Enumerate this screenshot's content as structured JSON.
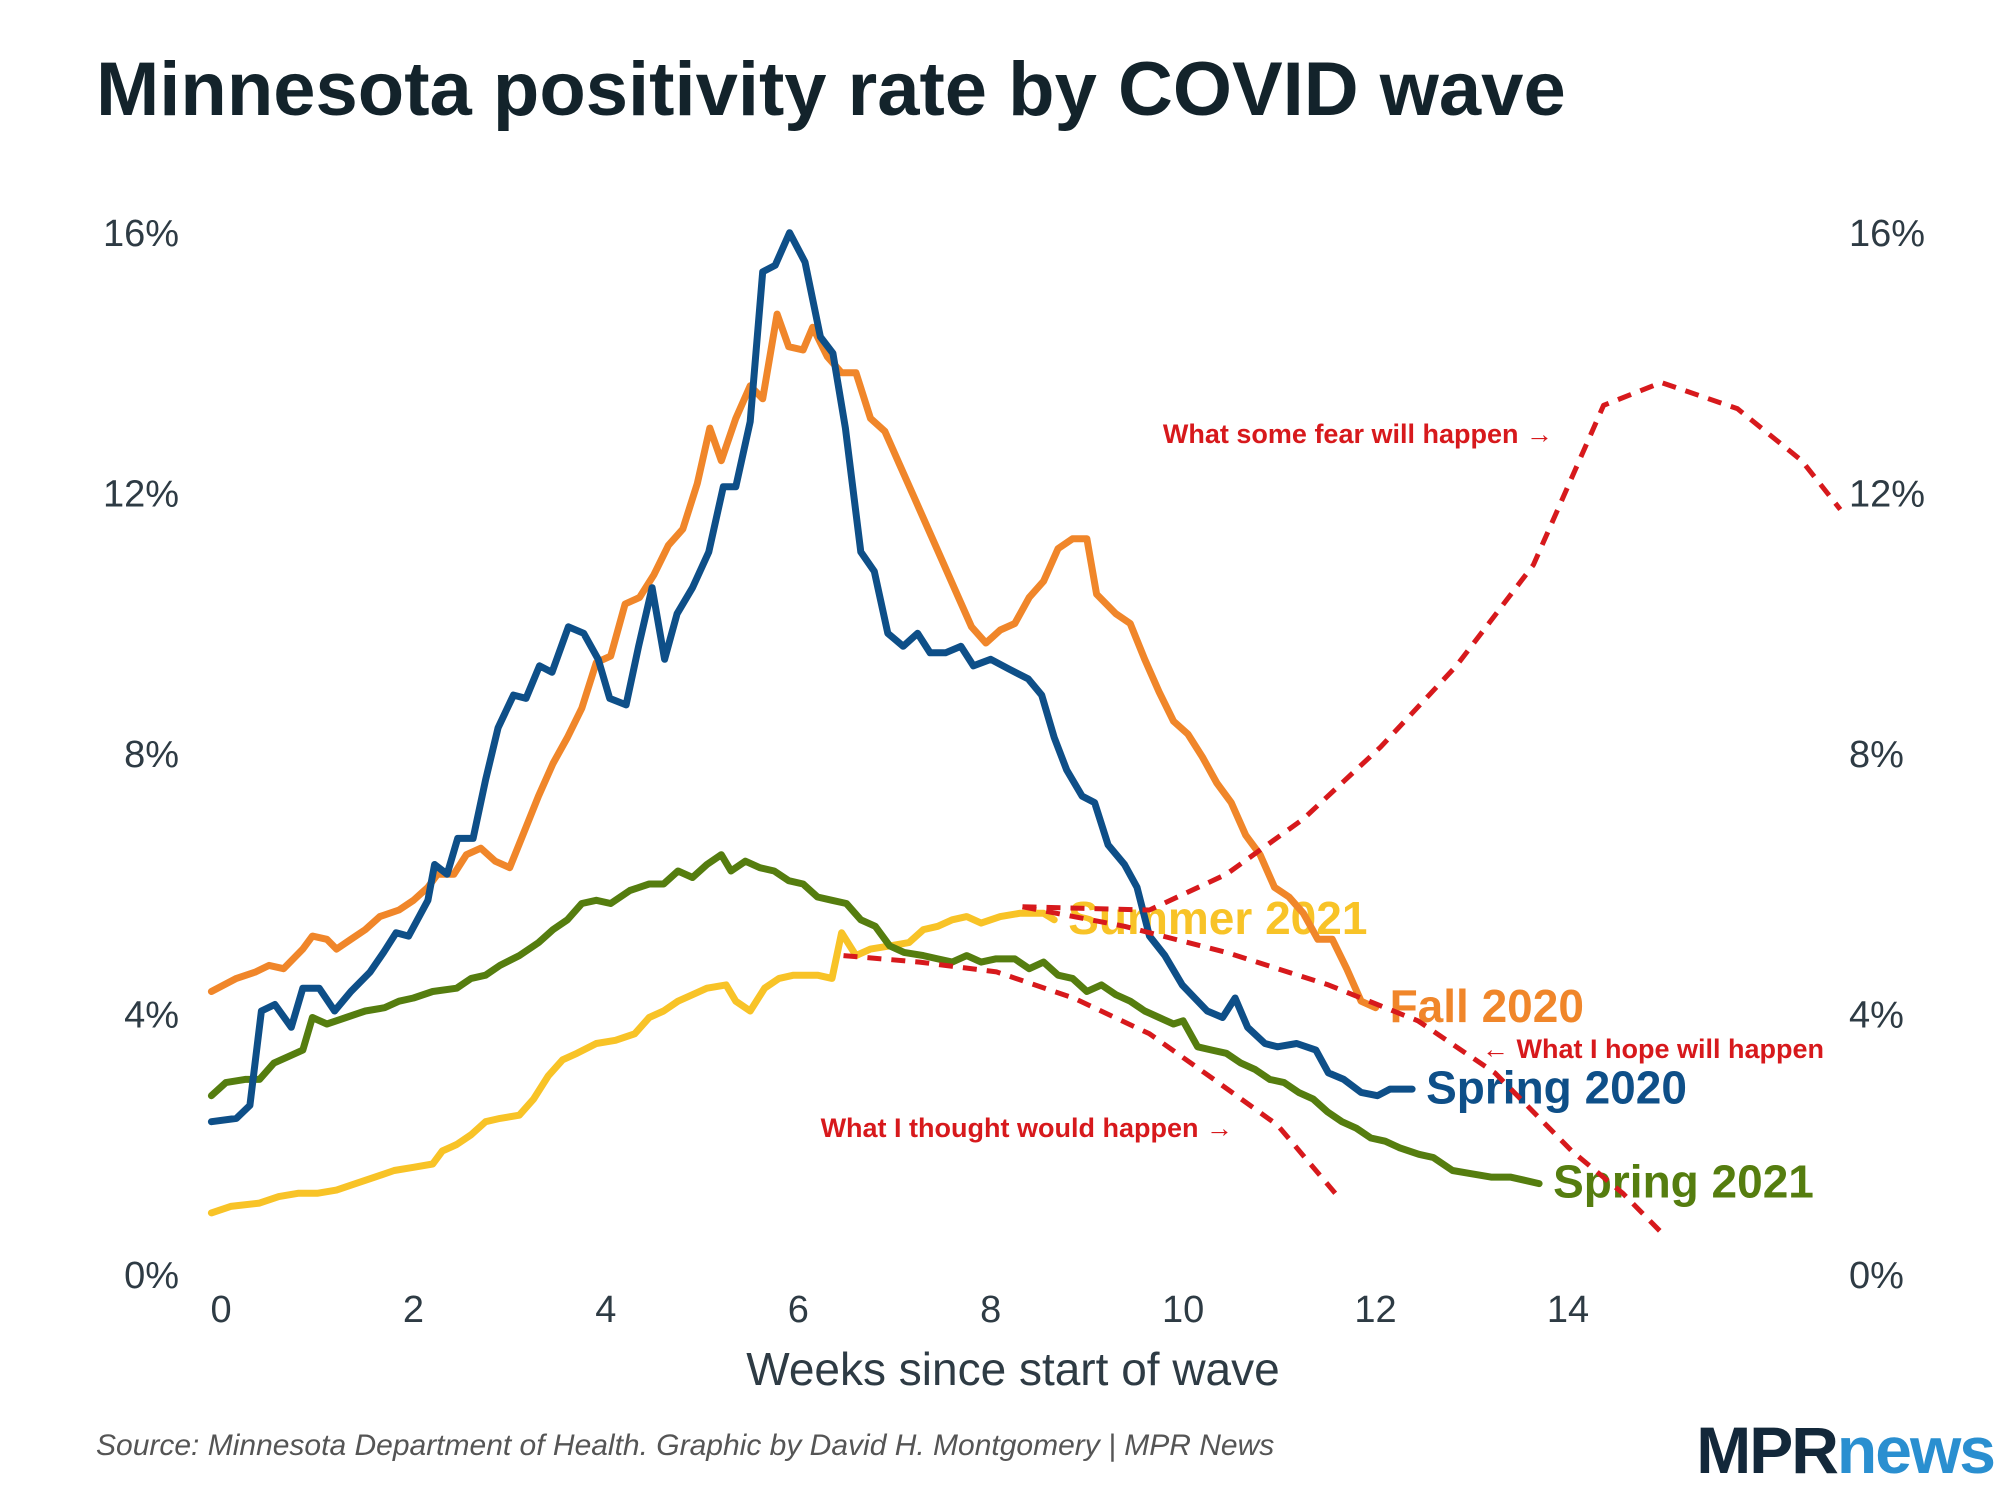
{
  "chart_data": {
    "type": "line",
    "title": "Minnesota positivity rate by COVID wave",
    "x_label": "Weeks since start of wave",
    "source": "Source: Minnesota Department of Health. Graphic by David H. Montgomery | MPR News",
    "logo": [
      "MPR",
      "news"
    ],
    "xlim": [
      -0.15,
      16.9
    ],
    "xticks": [
      0,
      2,
      4,
      6,
      8,
      10,
      12,
      14
    ],
    "ylim": [
      0,
      16
    ],
    "yticks": [
      {
        "value": 0,
        "label": "0%"
      },
      {
        "value": 4,
        "label": "4%"
      },
      {
        "value": 8,
        "label": "8%"
      },
      {
        "value": 12,
        "label": "12%"
      },
      {
        "value": 16,
        "label": "16%"
      }
    ],
    "y2lim": [
      0,
      16
    ],
    "y2ticks": [
      {
        "value": 0,
        "label": "0%"
      },
      {
        "value": 4,
        "label": "4%"
      },
      {
        "value": 8,
        "label": "8%"
      },
      {
        "value": 12,
        "label": "12%"
      },
      {
        "value": 16,
        "label": "16%"
      }
    ],
    "grid": false,
    "series": [
      {
        "name": "Summer 2021",
        "color": "#f8c327",
        "x": [
          -0.1,
          0.1,
          0.4,
          0.6,
          0.8,
          1.0,
          1.2,
          1.4,
          1.6,
          1.8,
          2.0,
          2.2,
          2.3,
          2.45,
          2.6,
          2.75,
          2.9,
          3.1,
          3.25,
          3.4,
          3.55,
          3.7,
          3.9,
          4.1,
          4.3,
          4.45,
          4.6,
          4.75,
          4.9,
          5.05,
          5.25,
          5.35,
          5.5,
          5.65,
          5.8,
          5.95,
          6.2,
          6.35,
          6.45,
          6.6,
          6.75,
          6.95,
          7.15,
          7.3,
          7.45,
          7.6,
          7.75,
          7.9,
          8.1,
          8.3,
          8.55,
          8.66
        ],
        "values": [
          1.0,
          1.1,
          1.15,
          1.25,
          1.3,
          1.3,
          1.35,
          1.45,
          1.55,
          1.65,
          1.7,
          1.75,
          1.95,
          2.05,
          2.2,
          2.4,
          2.45,
          2.5,
          2.75,
          3.1,
          3.35,
          3.45,
          3.6,
          3.65,
          3.75,
          4.0,
          4.1,
          4.25,
          4.35,
          4.45,
          4.5,
          4.25,
          4.1,
          4.45,
          4.6,
          4.65,
          4.65,
          4.6,
          5.3,
          4.95,
          5.05,
          5.1,
          5.15,
          5.35,
          5.4,
          5.5,
          5.55,
          5.45,
          5.55,
          5.6,
          5.6,
          5.5
        ]
      },
      {
        "name": "Spring 2021",
        "color": "#557d0f",
        "x": [
          -0.1,
          0.05,
          0.25,
          0.4,
          0.55,
          0.7,
          0.85,
          0.95,
          1.1,
          1.3,
          1.5,
          1.7,
          1.85,
          2.0,
          2.2,
          2.45,
          2.6,
          2.75,
          2.9,
          3.1,
          3.3,
          3.45,
          3.6,
          3.75,
          3.9,
          4.05,
          4.25,
          4.45,
          4.6,
          4.75,
          4.9,
          5.05,
          5.2,
          5.3,
          5.45,
          5.6,
          5.75,
          5.9,
          6.05,
          6.2,
          6.35,
          6.5,
          6.65,
          6.8,
          6.95,
          7.1,
          7.3,
          7.45,
          7.6,
          7.75,
          7.9,
          8.05,
          8.25,
          8.4,
          8.55,
          8.7,
          8.85,
          9.0,
          9.15,
          9.3,
          9.45,
          9.6,
          9.75,
          9.9,
          10.0,
          10.15,
          10.3,
          10.45,
          10.6,
          10.75,
          10.9,
          11.05,
          11.2,
          11.35,
          11.5,
          11.65,
          11.8,
          11.95,
          12.1,
          12.25,
          12.45,
          12.6,
          12.8,
          13.0,
          13.2,
          13.4,
          13.55,
          13.7
        ],
        "values": [
          2.8,
          3.0,
          3.05,
          3.05,
          3.3,
          3.4,
          3.5,
          4.0,
          3.9,
          4.0,
          4.1,
          4.15,
          4.25,
          4.3,
          4.4,
          4.45,
          4.6,
          4.65,
          4.8,
          4.95,
          5.15,
          5.35,
          5.5,
          5.75,
          5.8,
          5.75,
          5.95,
          6.05,
          6.05,
          6.25,
          6.15,
          6.35,
          6.5,
          6.25,
          6.4,
          6.3,
          6.25,
          6.1,
          6.05,
          5.85,
          5.8,
          5.75,
          5.5,
          5.4,
          5.1,
          5.0,
          4.95,
          4.9,
          4.85,
          4.95,
          4.85,
          4.9,
          4.9,
          4.75,
          4.85,
          4.65,
          4.6,
          4.4,
          4.5,
          4.35,
          4.25,
          4.1,
          4.0,
          3.9,
          3.95,
          3.55,
          3.5,
          3.45,
          3.3,
          3.2,
          3.05,
          3.0,
          2.85,
          2.75,
          2.55,
          2.4,
          2.3,
          2.15,
          2.1,
          2.0,
          1.9,
          1.85,
          1.65,
          1.6,
          1.55,
          1.55,
          1.5,
          1.45
        ]
      },
      {
        "name": "Fall 2020",
        "color": "#f0862a",
        "x": [
          -0.1,
          0.16,
          0.36,
          0.5,
          0.65,
          0.85,
          0.95,
          1.1,
          1.2,
          1.35,
          1.5,
          1.65,
          1.85,
          2.0,
          2.15,
          2.25,
          2.42,
          2.55,
          2.7,
          2.85,
          3.0,
          3.15,
          3.3,
          3.45,
          3.6,
          3.75,
          3.9,
          4.05,
          4.2,
          4.35,
          4.5,
          4.65,
          4.8,
          4.95,
          5.08,
          5.2,
          5.35,
          5.5,
          5.63,
          5.78,
          5.9,
          6.05,
          6.15,
          6.3,
          6.45,
          6.6,
          6.75,
          6.9,
          7.05,
          7.2,
          7.35,
          7.5,
          7.65,
          7.8,
          7.95,
          8.1,
          8.25,
          8.4,
          8.55,
          8.7,
          8.85,
          9.0,
          9.1,
          9.3,
          9.45,
          9.6,
          9.75,
          9.9,
          10.05,
          10.2,
          10.35,
          10.5,
          10.65,
          10.8,
          10.95,
          11.1,
          11.25,
          11.4,
          11.55,
          11.7,
          11.85,
          12.0
        ],
        "values": [
          4.4,
          4.6,
          4.7,
          4.8,
          4.75,
          5.05,
          5.25,
          5.2,
          5.05,
          5.2,
          5.35,
          5.55,
          5.65,
          5.8,
          6.0,
          6.2,
          6.2,
          6.5,
          6.6,
          6.4,
          6.3,
          6.85,
          7.4,
          7.9,
          8.3,
          8.75,
          9.45,
          9.55,
          10.35,
          10.45,
          10.8,
          11.25,
          11.5,
          12.2,
          13.05,
          12.55,
          13.2,
          13.7,
          13.5,
          14.8,
          14.3,
          14.25,
          14.6,
          14.15,
          13.9,
          13.9,
          13.2,
          13.0,
          12.5,
          12.0,
          11.5,
          11.0,
          10.5,
          10.0,
          9.75,
          9.95,
          10.05,
          10.45,
          10.7,
          11.2,
          11.35,
          11.35,
          10.5,
          10.2,
          10.05,
          9.5,
          9.0,
          8.55,
          8.35,
          8.0,
          7.6,
          7.3,
          6.8,
          6.5,
          6.0,
          5.85,
          5.6,
          5.2,
          5.2,
          4.75,
          4.25,
          4.15
        ]
      },
      {
        "name": "Spring 2020",
        "color": "#0e4f88",
        "x": [
          -0.1,
          0.16,
          0.3,
          0.42,
          0.56,
          0.73,
          0.85,
          1.02,
          1.18,
          1.35,
          1.55,
          1.69,
          1.82,
          1.95,
          2.15,
          2.22,
          2.35,
          2.46,
          2.62,
          2.75,
          2.88,
          3.04,
          3.17,
          3.31,
          3.44,
          3.61,
          3.77,
          3.92,
          4.04,
          4.21,
          4.34,
          4.48,
          4.61,
          4.74,
          4.9,
          5.07,
          5.22,
          5.35,
          5.5,
          5.63,
          5.76,
          5.91,
          6.07,
          6.23,
          6.36,
          6.49,
          6.65,
          6.79,
          6.93,
          7.09,
          7.24,
          7.37,
          7.53,
          7.69,
          7.82,
          8.0,
          8.19,
          8.39,
          8.53,
          8.66,
          8.79,
          8.95,
          9.08,
          9.22,
          9.39,
          9.52,
          9.65,
          9.81,
          9.99,
          10.12,
          10.25,
          10.41,
          10.54,
          10.67,
          10.85,
          10.98,
          11.18,
          11.38,
          11.51,
          11.67,
          11.85,
          12.02,
          12.15,
          12.38
        ],
        "values": [
          2.4,
          2.45,
          2.65,
          4.1,
          4.2,
          3.85,
          4.45,
          4.45,
          4.1,
          4.4,
          4.7,
          5.0,
          5.3,
          5.25,
          5.8,
          6.35,
          6.2,
          6.75,
          6.75,
          7.65,
          8.45,
          8.95,
          8.9,
          9.4,
          9.3,
          10.0,
          9.9,
          9.5,
          8.9,
          8.8,
          9.7,
          10.6,
          9.5,
          10.2,
          10.6,
          11.15,
          12.15,
          12.15,
          13.15,
          15.45,
          15.55,
          16.05,
          15.6,
          14.45,
          14.2,
          13.05,
          11.15,
          10.85,
          9.9,
          9.7,
          9.9,
          9.6,
          9.6,
          9.7,
          9.4,
          9.5,
          9.35,
          9.2,
          8.95,
          8.3,
          7.8,
          7.4,
          7.3,
          6.65,
          6.35,
          6.0,
          5.25,
          4.95,
          4.5,
          4.3,
          4.1,
          4.0,
          4.3,
          3.85,
          3.6,
          3.55,
          3.6,
          3.5,
          3.15,
          3.05,
          2.85,
          2.8,
          2.9,
          2.9
        ]
      },
      {
        "name": "What some fear will happen →",
        "color": "#d7191c",
        "dash": true,
        "x": [
          8.33,
          9.65,
          10.45,
          11.25,
          12.05,
          12.84,
          13.64,
          14.37,
          14.97,
          15.76,
          16.43,
          16.83
        ],
        "values": [
          5.7,
          5.65,
          6.2,
          7.05,
          8.15,
          9.4,
          10.95,
          13.4,
          13.75,
          13.35,
          12.55,
          11.8
        ]
      },
      {
        "name": "← What I hope will happen",
        "color": "#d7191c",
        "dash": true,
        "x": [
          8.33,
          9.39,
          10.45,
          11.51,
          12.44,
          13.24,
          14.04,
          14.57,
          14.97
        ],
        "values": [
          5.7,
          5.4,
          5.0,
          4.5,
          3.95,
          3.15,
          1.95,
          1.3,
          0.7
        ]
      },
      {
        "name": "What I thought would happen →",
        "color": "#d7191c",
        "dash": true,
        "x": [
          6.47,
          7.26,
          8.06,
          8.86,
          9.65,
          10.32,
          10.98,
          11.58
        ],
        "values": [
          4.95,
          4.85,
          4.7,
          4.3,
          3.75,
          3.05,
          2.35,
          1.3
        ]
      }
    ]
  }
}
